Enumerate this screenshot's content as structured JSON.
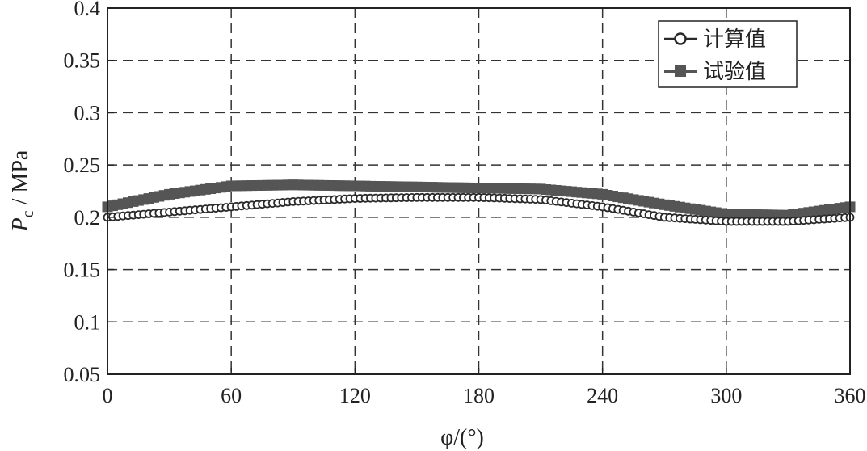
{
  "chart_data": {
    "type": "line",
    "xlabel": "φ/(°)",
    "ylabel": "P_c / MPa",
    "ylabel_main": "P",
    "ylabel_sub": "c",
    "ylabel_rest": " / MPa",
    "xlim": [
      0,
      360
    ],
    "ylim": [
      0.05,
      0.4
    ],
    "xticks": [
      0,
      60,
      120,
      180,
      240,
      300,
      360
    ],
    "xtick_labels": [
      "0",
      "60",
      "120",
      "180",
      "240",
      "300",
      "360"
    ],
    "yticks": [
      0.05,
      0.1,
      0.15,
      0.2,
      0.25,
      0.3,
      0.35,
      0.4
    ],
    "ytick_labels": [
      "0.05",
      "0.1",
      "0.15",
      "0.2",
      "0.25",
      "0.3",
      "0.35",
      "0.4"
    ],
    "grid": true,
    "legend_position": "top-right",
    "series": [
      {
        "name": "计算值",
        "marker": "circle-open",
        "color": "#2a2a2a",
        "x": [
          0,
          30,
          60,
          90,
          120,
          150,
          180,
          210,
          240,
          270,
          300,
          330,
          360
        ],
        "y": [
          0.2,
          0.205,
          0.21,
          0.215,
          0.218,
          0.219,
          0.219,
          0.217,
          0.21,
          0.2,
          0.196,
          0.196,
          0.2
        ]
      },
      {
        "name": "试验值",
        "marker": "square-filled",
        "color": "#555555",
        "x": [
          0,
          30,
          60,
          90,
          120,
          150,
          180,
          210,
          240,
          270,
          300,
          330,
          360
        ],
        "y": [
          0.21,
          0.222,
          0.23,
          0.231,
          0.23,
          0.229,
          0.228,
          0.227,
          0.222,
          0.212,
          0.203,
          0.202,
          0.21
        ]
      }
    ]
  }
}
